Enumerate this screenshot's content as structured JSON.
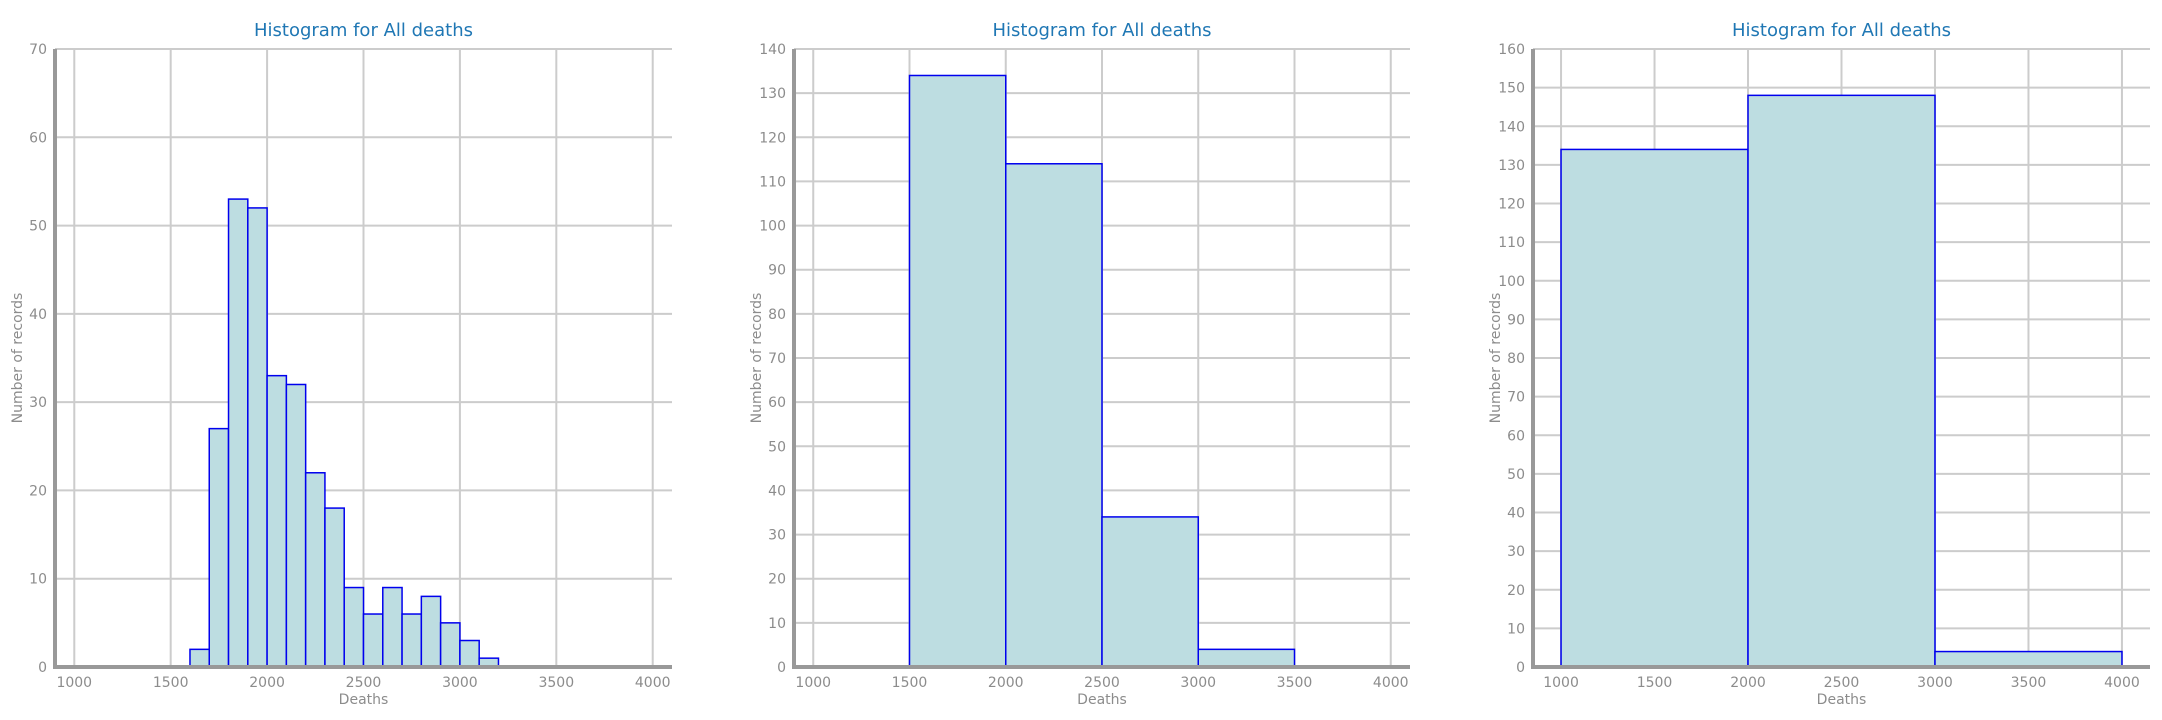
{
  "colors": {
    "bar_fill": "#bddde1",
    "bar_edge": "#0000ee",
    "title": "#1f77b4",
    "text": "#8c8c8c",
    "grid": "#cccccc",
    "spine": "#999999"
  },
  "chart_data": [
    {
      "type": "bar",
      "title": "Histogram for All deaths",
      "xlabel": "Deaths",
      "ylabel": "Number of records",
      "xlim": [
        900,
        4100
      ],
      "ylim": [
        0,
        70
      ],
      "xticks": [
        1000,
        1500,
        2000,
        2500,
        3000,
        3500,
        4000
      ],
      "yticks": [
        0,
        10,
        20,
        30,
        40,
        50,
        60,
        70
      ],
      "grid": true,
      "bin_width": 100,
      "bins": [
        {
          "x0": 1600,
          "x1": 1700,
          "count": 2
        },
        {
          "x0": 1700,
          "x1": 1800,
          "count": 27
        },
        {
          "x0": 1800,
          "x1": 1900,
          "count": 53
        },
        {
          "x0": 1900,
          "x1": 2000,
          "count": 52
        },
        {
          "x0": 2000,
          "x1": 2100,
          "count": 33
        },
        {
          "x0": 2100,
          "x1": 2200,
          "count": 32
        },
        {
          "x0": 2200,
          "x1": 2300,
          "count": 22
        },
        {
          "x0": 2300,
          "x1": 2400,
          "count": 18
        },
        {
          "x0": 2400,
          "x1": 2500,
          "count": 9
        },
        {
          "x0": 2500,
          "x1": 2600,
          "count": 6
        },
        {
          "x0": 2600,
          "x1": 2700,
          "count": 9
        },
        {
          "x0": 2700,
          "x1": 2800,
          "count": 6
        },
        {
          "x0": 2800,
          "x1": 2900,
          "count": 8
        },
        {
          "x0": 2900,
          "x1": 3000,
          "count": 5
        },
        {
          "x0": 3000,
          "x1": 3100,
          "count": 3
        },
        {
          "x0": 3100,
          "x1": 3200,
          "count": 1
        }
      ]
    },
    {
      "type": "bar",
      "title": "Histogram for All deaths",
      "xlabel": "Deaths",
      "ylabel": "Number of records",
      "xlim": [
        900,
        4100
      ],
      "ylim": [
        0,
        140
      ],
      "xticks": [
        1000,
        1500,
        2000,
        2500,
        3000,
        3500,
        4000
      ],
      "yticks": [
        0,
        10,
        20,
        30,
        40,
        50,
        60,
        70,
        80,
        90,
        100,
        110,
        120,
        130,
        140
      ],
      "grid": true,
      "bin_width": 500,
      "bins": [
        {
          "x0": 1500,
          "x1": 2000,
          "count": 134
        },
        {
          "x0": 2000,
          "x1": 2500,
          "count": 114
        },
        {
          "x0": 2500,
          "x1": 3000,
          "count": 34
        },
        {
          "x0": 3000,
          "x1": 3500,
          "count": 4
        }
      ]
    },
    {
      "type": "bar",
      "title": "Histogram for All deaths",
      "xlabel": "Deaths",
      "ylabel": "Number of records",
      "xlim": [
        850,
        4150
      ],
      "ylim": [
        0,
        160
      ],
      "xticks": [
        1000,
        1500,
        2000,
        2500,
        3000,
        3500,
        4000
      ],
      "yticks": [
        0,
        10,
        20,
        30,
        40,
        50,
        60,
        70,
        80,
        90,
        100,
        110,
        120,
        130,
        140,
        150,
        160
      ],
      "grid": true,
      "bin_width": 1000,
      "bins": [
        {
          "x0": 1000,
          "x1": 2000,
          "count": 134
        },
        {
          "x0": 2000,
          "x1": 3000,
          "count": 148
        },
        {
          "x0": 3000,
          "x1": 4000,
          "count": 4
        }
      ]
    }
  ]
}
